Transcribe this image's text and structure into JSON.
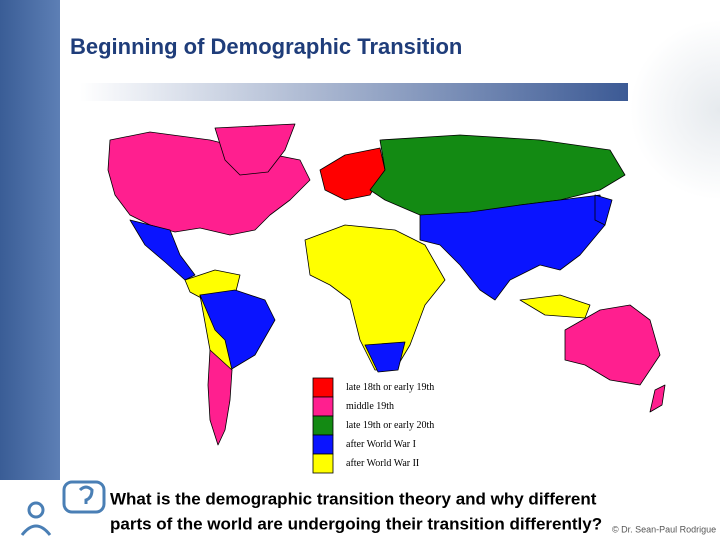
{
  "title": "Beginning of Demographic Transition",
  "legend": [
    {
      "label": "late 18th or early 19th",
      "color": "#ff0000"
    },
    {
      "label": "middle 19th",
      "color": "#ff1f8f"
    },
    {
      "label": "late 19th or early 20th",
      "color": "#138a13"
    },
    {
      "label": "after World War I",
      "color": "#0a14ff"
    },
    {
      "label": "after World War II",
      "color": "#ffff00"
    }
  ],
  "question": [
    "What is the demographic transition theory and why different",
    "parts of the world are undergoing their transition differently?"
  ],
  "credit": "© Dr. Sean-Paul Rodrigue"
}
